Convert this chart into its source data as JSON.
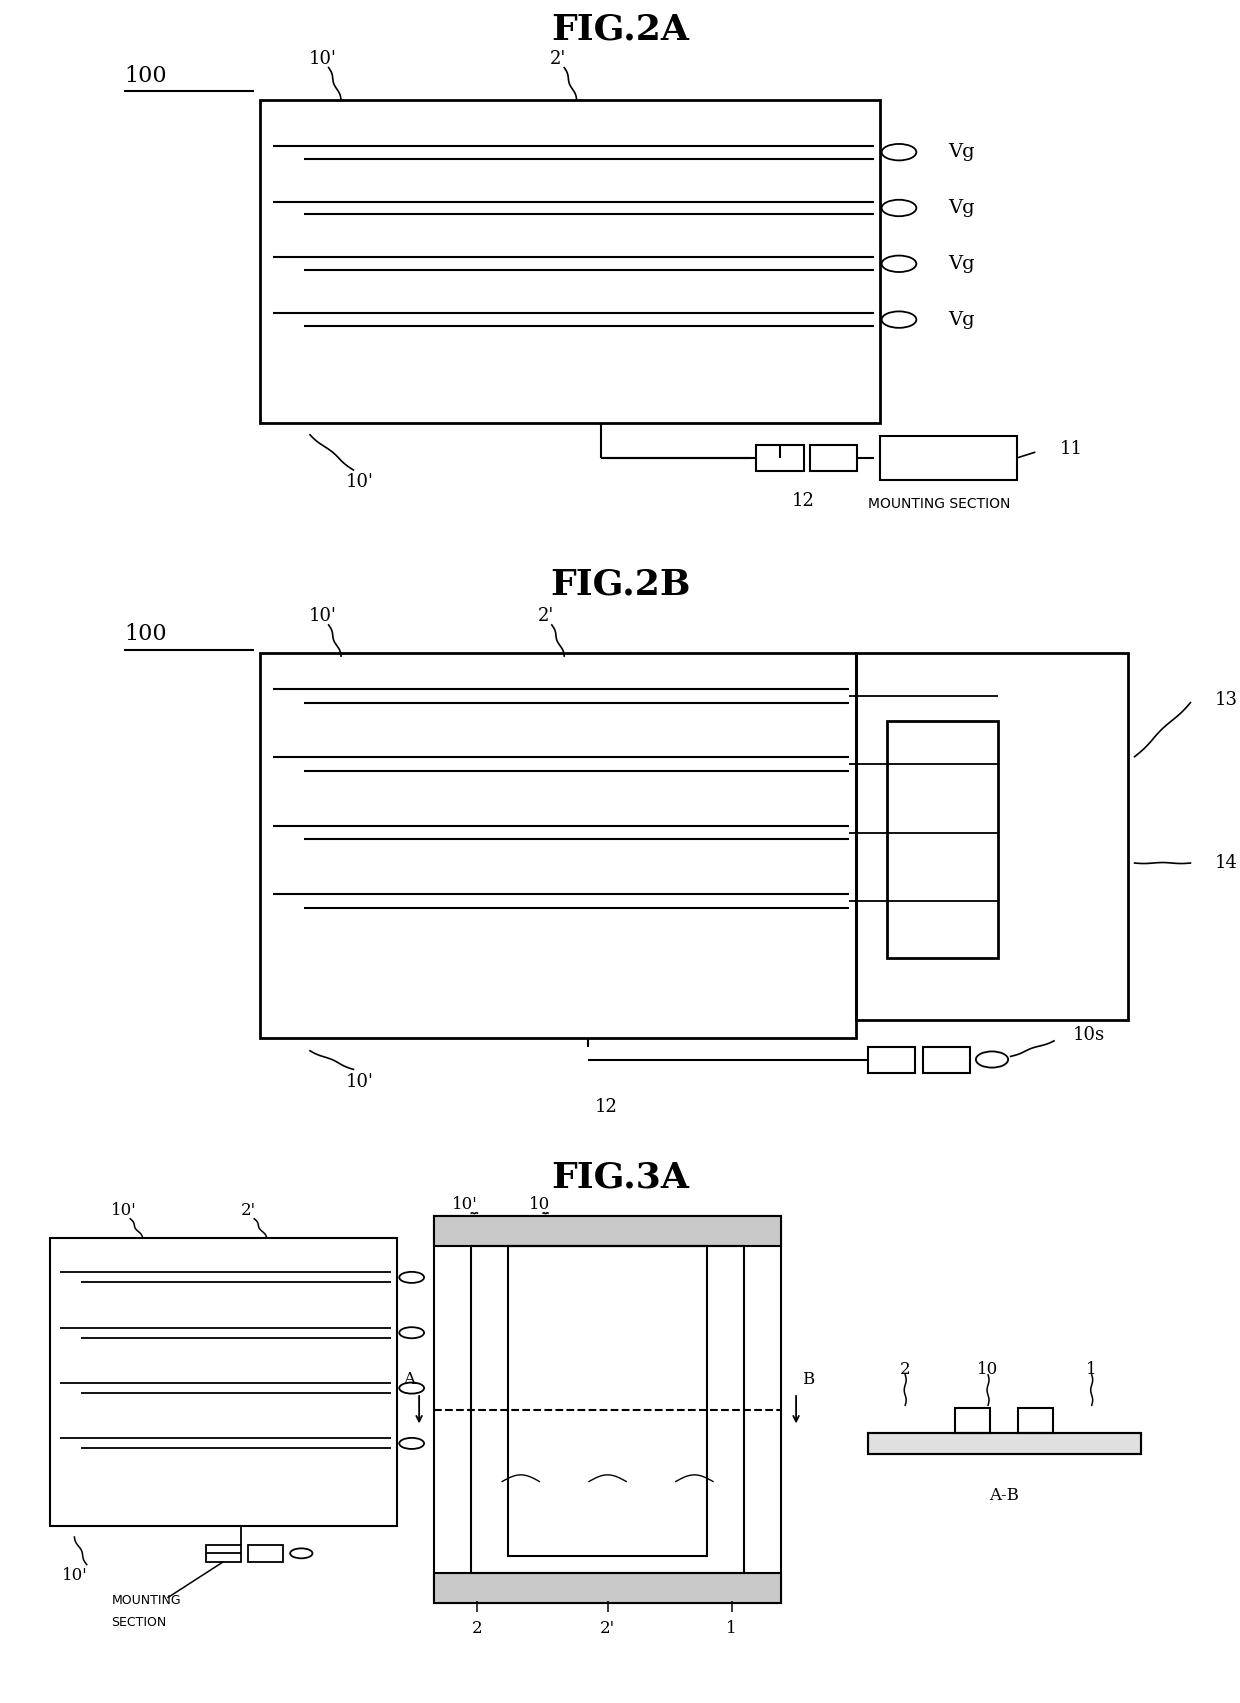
{
  "fig_title_2a": "FIG.2A",
  "fig_title_2b": "FIG.2B",
  "fig_title_3a": "FIG.3A",
  "bg_color": "#ffffff",
  "line_color": "#000000"
}
